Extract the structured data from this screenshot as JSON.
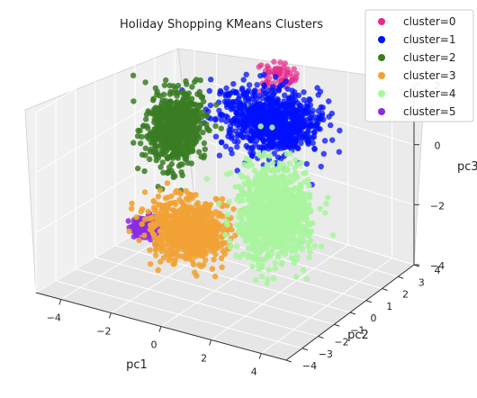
{
  "chart_data": {
    "type": "scatter",
    "projection": "3d",
    "title": "Holiday Shopping KMeans Clusters",
    "xlabel": "pc1",
    "ylabel": "pc2",
    "zlabel": "pc3",
    "xlim": [
      -5,
      5
    ],
    "ylim": [
      -4,
      4
    ],
    "zlim": [
      -4,
      2
    ],
    "x_ticks": [
      "−4",
      "−2",
      "0",
      "2",
      "4"
    ],
    "y_ticks": [
      "−4",
      "−3",
      "−2",
      "−1",
      "0",
      "1",
      "2",
      "3",
      "4"
    ],
    "z_ticks": [
      "2",
      "0",
      "−2",
      "−4"
    ],
    "grid": true,
    "legend_position": "top-right",
    "series": [
      {
        "name": "cluster=0",
        "color": "#e7298a",
        "center": [
          0.0,
          2.5,
          1.8
        ],
        "spread": [
          0.8,
          0.6,
          0.4
        ],
        "alpha": 0.7
      },
      {
        "name": "cluster=1",
        "color": "#0010ff",
        "center": [
          0.3,
          1.8,
          0.6
        ],
        "spread": [
          1.9,
          1.1,
          0.9
        ],
        "alpha": 0.75
      },
      {
        "name": "cluster=2",
        "color": "#3a7d23",
        "center": [
          -3.1,
          0.8,
          0.0
        ],
        "spread": [
          0.85,
          1.1,
          1.2
        ],
        "alpha": 0.85
      },
      {
        "name": "cluster=3",
        "color": "#f2a235",
        "center": [
          -0.8,
          -1.4,
          -2.0
        ],
        "spread": [
          1.4,
          1.0,
          0.9
        ],
        "alpha": 0.9
      },
      {
        "name": "cluster=4",
        "color": "#aaf59e",
        "center": [
          2.5,
          -1.0,
          -0.9
        ],
        "spread": [
          1.3,
          1.2,
          1.5
        ],
        "alpha": 0.9
      },
      {
        "name": "cluster=5",
        "color": "#8a2be2",
        "center": [
          -3.3,
          -0.5,
          -2.8
        ],
        "spread": [
          0.5,
          0.4,
          0.3
        ],
        "alpha": 0.85
      }
    ]
  }
}
